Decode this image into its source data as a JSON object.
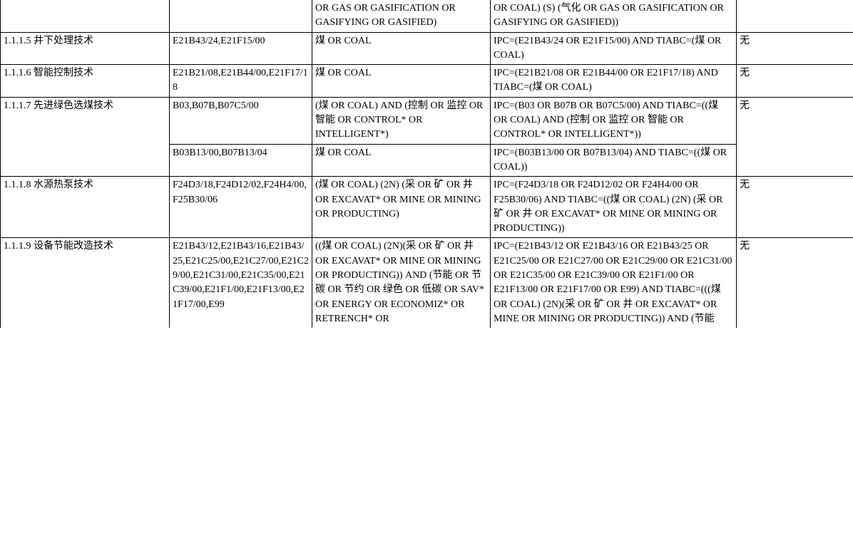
{
  "rows": [
    {
      "col1": "",
      "col2": "",
      "col3": "OR GAS OR GASIFICATION OR GASIFYING OR GASIFIED)",
      "col4": "OR COAL) (S) (气化 OR GAS OR GASIFICATION OR GASIFYING OR GASIFIED))",
      "col5": ""
    },
    {
      "col1": "1.1.1.5 井下处理技术",
      "col2": "E21B43/24,E21F15/00",
      "col3": "煤 OR COAL",
      "col4": "IPC=(E21B43/24 OR E21F15/00) AND TIABC=(煤 OR COAL)",
      "col5": "无"
    },
    {
      "col1": "1.1.1.6 智能控制技术",
      "col2": "E21B21/08,E21B44/00,E21F17/18",
      "col3": "煤 OR COAL",
      "col4": "IPC=(E21B21/08 OR E21B44/00 OR E21F17/18) AND TIABC=(煤 OR COAL)",
      "col5": "无"
    },
    {
      "col1": "1.1.1.7 先进绿色选煤技术",
      "col2": "B03,B07B,B07C5/00",
      "col3": "(煤 OR COAL) AND (控制 OR 监控 OR 智能 OR CONTROL* OR INTELLIGENT*)",
      "col4": "IPC=(B03 OR B07B OR B07C5/00) AND TIABC=((煤 OR COAL) AND (控制 OR 监控 OR 智能 OR CONTROL* OR INTELLIGENT*))",
      "col5": "无"
    },
    {
      "col2b": "B03B13/00,B07B13/04",
      "col3b": "煤 OR COAL",
      "col4b": "IPC=(B03B13/00 OR B07B13/04) AND TIABC=((煤 OR COAL))"
    },
    {
      "col1": "1.1.1.8 水源热泵技术",
      "col2": "F24D3/18,F24D12/02,F24H4/00,F25B30/06",
      "col3": "(煤 OR COAL) (2N) (采 OR 矿 OR 井 OR EXCAVAT* OR MINE OR MINING OR PRODUCTING)",
      "col4": "IPC=(F24D3/18 OR F24D12/02 OR F24H4/00 OR F25B30/06) AND TIABC=((煤 OR COAL) (2N) (采 OR 矿 OR 井 OR EXCAVAT* OR MINE OR MINING OR PRODUCTING))",
      "col5": "无"
    },
    {
      "col1": "1.1.1.9 设备节能改造技术",
      "col2": "E21B43/12,E21B43/16,E21B43/25,E21C25/00,E21C27/00,E21C29/00,E21C31/00,E21C35/00,E21C39/00,E21F1/00,E21F13/00,E21F17/00,E99",
      "col3": "((煤 OR COAL) (2N)(采 OR 矿 OR 井 OR EXCAVAT* OR MINE OR MINING OR PRODUCTING)) AND (节能 OR 节碳 OR 节约 OR 绿色 OR 低碳 OR SAV* OR ENERGY OR ECONOMIZ* OR RETRENCH* OR",
      "col4": "IPC=(E21B43/12 OR E21B43/16 OR E21B43/25 OR E21C25/00 OR E21C27/00 OR E21C29/00 OR E21C31/00 OR E21C35/00 OR E21C39/00 OR E21F1/00 OR E21F13/00 OR E21F17/00 OR E99) AND TIABC=(((煤 OR COAL) (2N)(采 OR 矿 OR 井 OR EXCAVAT* OR MINE OR MINING OR PRODUCTING)) AND (节能",
      "col5": "无"
    }
  ]
}
